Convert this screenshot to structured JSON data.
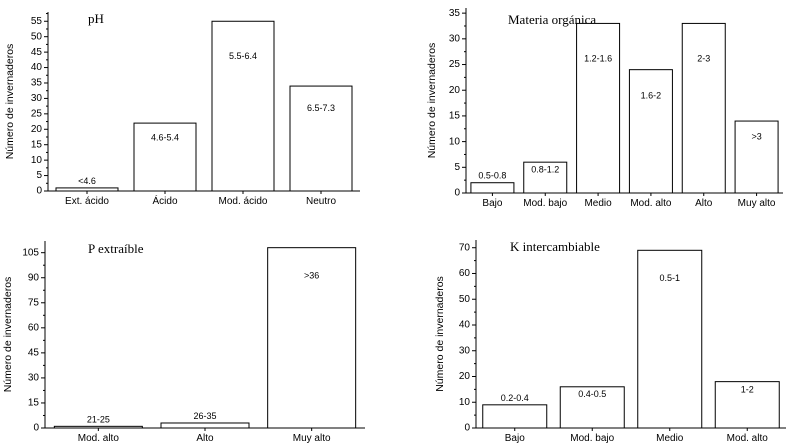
{
  "chart_data": [
    {
      "type": "bar",
      "title": "pH",
      "ylabel": "Número de invernaderos",
      "xlabel": "",
      "categories": [
        "Ext. ácido",
        "Ácido",
        "Mod. ácido",
        "Neutro"
      ],
      "bar_labels": [
        "<4.6",
        "4.6-5.4",
        "5.5-6.4",
        "6.5-7.3"
      ],
      "values": [
        1,
        22,
        55,
        34
      ],
      "ylim": [
        0,
        58
      ],
      "yticks": [
        0,
        5,
        10,
        15,
        20,
        25,
        30,
        35,
        40,
        45,
        50,
        55
      ],
      "grid": false
    },
    {
      "type": "bar",
      "title": "Materia orgánica",
      "ylabel": "Número de invernaderos",
      "xlabel": "",
      "categories": [
        "Bajo",
        "Mod. bajo",
        "Medio",
        "Mod. alto",
        "Alto",
        "Muy alto"
      ],
      "bar_labels": [
        "0.5-0.8",
        "0.8-1.2",
        "1.2-1.6",
        "1.6-2",
        "2-3",
        ">3"
      ],
      "values": [
        2,
        6,
        33,
        24,
        33,
        14
      ],
      "ylim": [
        0,
        36
      ],
      "yticks": [
        0,
        5,
        10,
        15,
        20,
        25,
        30,
        35
      ],
      "grid": false
    },
    {
      "type": "bar",
      "title": "P extraíble",
      "ylabel": "Número de invernaderos",
      "xlabel": "",
      "categories": [
        "Mod. alto",
        "Alto",
        "Muy alto"
      ],
      "bar_labels": [
        "21-25",
        "26-35",
        ">36"
      ],
      "values": [
        1,
        3,
        108
      ],
      "ylim": [
        0,
        112
      ],
      "yticks": [
        0,
        15,
        30,
        45,
        60,
        75,
        90,
        105
      ],
      "grid": false
    },
    {
      "type": "bar",
      "title": "K intercambiable",
      "ylabel": "Número de invernaderos",
      "xlabel": "",
      "categories": [
        "Bajo",
        "Mod. bajo",
        "Medio",
        "Mod. alto"
      ],
      "bar_labels": [
        "0.2-0.4",
        "0.4-0.5",
        "0.5-1",
        "1-2"
      ],
      "values": [
        9,
        16,
        69,
        18
      ],
      "ylim": [
        0,
        73
      ],
      "yticks": [
        0,
        10,
        20,
        30,
        40,
        50,
        60,
        70
      ],
      "grid": false
    }
  ]
}
